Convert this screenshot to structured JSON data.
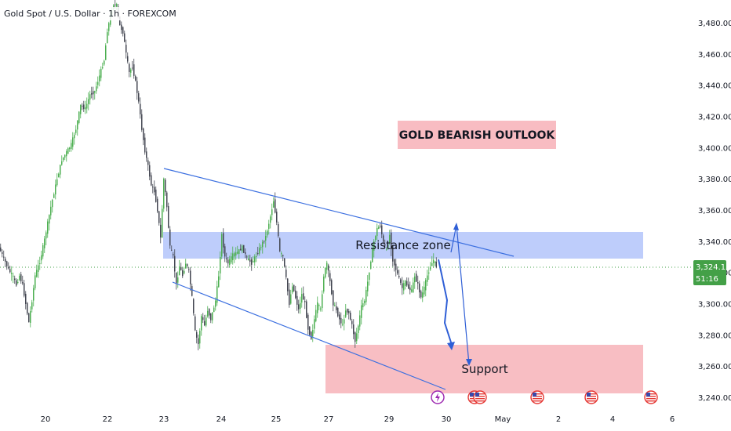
{
  "header": {
    "title": "Gold Spot / U.S. Dollar · 1h · FOREXCOM"
  },
  "colors": {
    "up": "#4caf50",
    "down": "#434651",
    "trendline": "#3b6fe0",
    "resistance_fill": "#b7c8fb",
    "support_fill": "#f7b7bd",
    "outlook_fill": "#f8bcc2",
    "price_tag": "#43a047",
    "axis_text": "#131722"
  },
  "annotations": {
    "outlook_label": "GOLD BEARISH OUTLOOK",
    "resistance_label": "Resistance zone",
    "support_label": "Support"
  },
  "price_tag": {
    "price": "3,324.15",
    "countdown": "51:16"
  },
  "event_icons": [
    "lightning-icon",
    "us-flag-icon",
    "us-flag-icon",
    "us-flag-icon",
    "us-flag-icon",
    "us-flag-icon",
    "us-flag-icon"
  ],
  "chart_data": {
    "type": "candlestick",
    "title": "Gold Spot / U.S. Dollar · 1h · FOREXCOM",
    "symbol": "XAUUSD",
    "timeframe": "1h",
    "x_ticks": [
      "20",
      "22",
      "23",
      "24",
      "25",
      "27",
      "29",
      "30",
      "May",
      "2",
      "4",
      "6"
    ],
    "y_ticks": [
      "3,240.00",
      "3,260.00",
      "3,280.00",
      "3,300.00",
      "3,320.00",
      "3,340.00",
      "3,360.00",
      "3,380.00",
      "3,400.00",
      "3,420.00",
      "3,440.00",
      "3,460.00",
      "3,480.00"
    ],
    "ylim": [
      3236,
      3494
    ],
    "last_price": 3324.15,
    "path_points": [
      [
        0,
        3336
      ],
      [
        6,
        3329
      ],
      [
        12,
        3322
      ],
      [
        18,
        3317
      ],
      [
        22,
        3312
      ],
      [
        26,
        3318
      ],
      [
        30,
        3312
      ],
      [
        34,
        3300
      ],
      [
        38,
        3288
      ],
      [
        42,
        3302
      ],
      [
        46,
        3318
      ],
      [
        52,
        3327
      ],
      [
        58,
        3341
      ],
      [
        66,
        3362
      ],
      [
        74,
        3380
      ],
      [
        80,
        3392
      ],
      [
        86,
        3397
      ],
      [
        92,
        3402
      ],
      [
        98,
        3412
      ],
      [
        104,
        3427
      ],
      [
        110,
        3425
      ],
      [
        116,
        3434
      ],
      [
        122,
        3436
      ],
      [
        128,
        3446
      ],
      [
        134,
        3456
      ],
      [
        138,
        3475
      ],
      [
        142,
        3484
      ],
      [
        146,
        3492
      ],
      [
        150,
        3491
      ],
      [
        154,
        3478
      ],
      [
        158,
        3474
      ],
      [
        162,
        3460
      ],
      [
        166,
        3448
      ],
      [
        170,
        3452
      ],
      [
        174,
        3442
      ],
      [
        178,
        3429
      ],
      [
        182,
        3412
      ],
      [
        186,
        3398
      ],
      [
        190,
        3388
      ],
      [
        194,
        3376
      ],
      [
        198,
        3372
      ],
      [
        202,
        3360
      ],
      [
        206,
        3342
      ],
      [
        210,
        3380
      ],
      [
        214,
        3362
      ],
      [
        218,
        3336
      ],
      [
        222,
        3330
      ],
      [
        226,
        3312
      ],
      [
        230,
        3324
      ],
      [
        234,
        3318
      ],
      [
        238,
        3326
      ],
      [
        242,
        3321
      ],
      [
        246,
        3304
      ],
      [
        250,
        3282
      ],
      [
        254,
        3274
      ],
      [
        258,
        3292
      ],
      [
        262,
        3286
      ],
      [
        266,
        3296
      ],
      [
        270,
        3290
      ],
      [
        276,
        3302
      ],
      [
        280,
        3318
      ],
      [
        284,
        3344
      ],
      [
        288,
        3330
      ],
      [
        292,
        3326
      ],
      [
        298,
        3331
      ],
      [
        304,
        3333
      ],
      [
        310,
        3336
      ],
      [
        316,
        3329
      ],
      [
        322,
        3326
      ],
      [
        328,
        3331
      ],
      [
        334,
        3337
      ],
      [
        340,
        3343
      ],
      [
        346,
        3356
      ],
      [
        350,
        3366
      ],
      [
        354,
        3352
      ],
      [
        358,
        3333
      ],
      [
        362,
        3330
      ],
      [
        366,
        3316
      ],
      [
        370,
        3300
      ],
      [
        374,
        3312
      ],
      [
        378,
        3304
      ],
      [
        382,
        3296
      ],
      [
        386,
        3306
      ],
      [
        390,
        3300
      ],
      [
        394,
        3284
      ],
      [
        398,
        3278
      ],
      [
        402,
        3290
      ],
      [
        406,
        3300
      ],
      [
        410,
        3296
      ],
      [
        414,
        3318
      ],
      [
        418,
        3326
      ],
      [
        422,
        3314
      ],
      [
        426,
        3300
      ],
      [
        430,
        3296
      ],
      [
        434,
        3290
      ],
      [
        438,
        3286
      ],
      [
        442,
        3296
      ],
      [
        446,
        3294
      ],
      [
        450,
        3286
      ],
      [
        454,
        3276
      ],
      [
        458,
        3286
      ],
      [
        462,
        3298
      ],
      [
        466,
        3302
      ],
      [
        470,
        3314
      ],
      [
        474,
        3328
      ],
      [
        478,
        3340
      ],
      [
        482,
        3348
      ],
      [
        486,
        3350
      ],
      [
        490,
        3339
      ],
      [
        494,
        3334
      ],
      [
        498,
        3344
      ],
      [
        502,
        3328
      ],
      [
        506,
        3322
      ],
      [
        510,
        3316
      ],
      [
        514,
        3310
      ],
      [
        518,
        3314
      ],
      [
        522,
        3310
      ],
      [
        526,
        3308
      ],
      [
        530,
        3318
      ],
      [
        534,
        3312
      ],
      [
        538,
        3304
      ],
      [
        542,
        3310
      ],
      [
        546,
        3318
      ],
      [
        550,
        3324
      ],
      [
        554,
        3328
      ],
      [
        557,
        3324.15
      ]
    ]
  }
}
